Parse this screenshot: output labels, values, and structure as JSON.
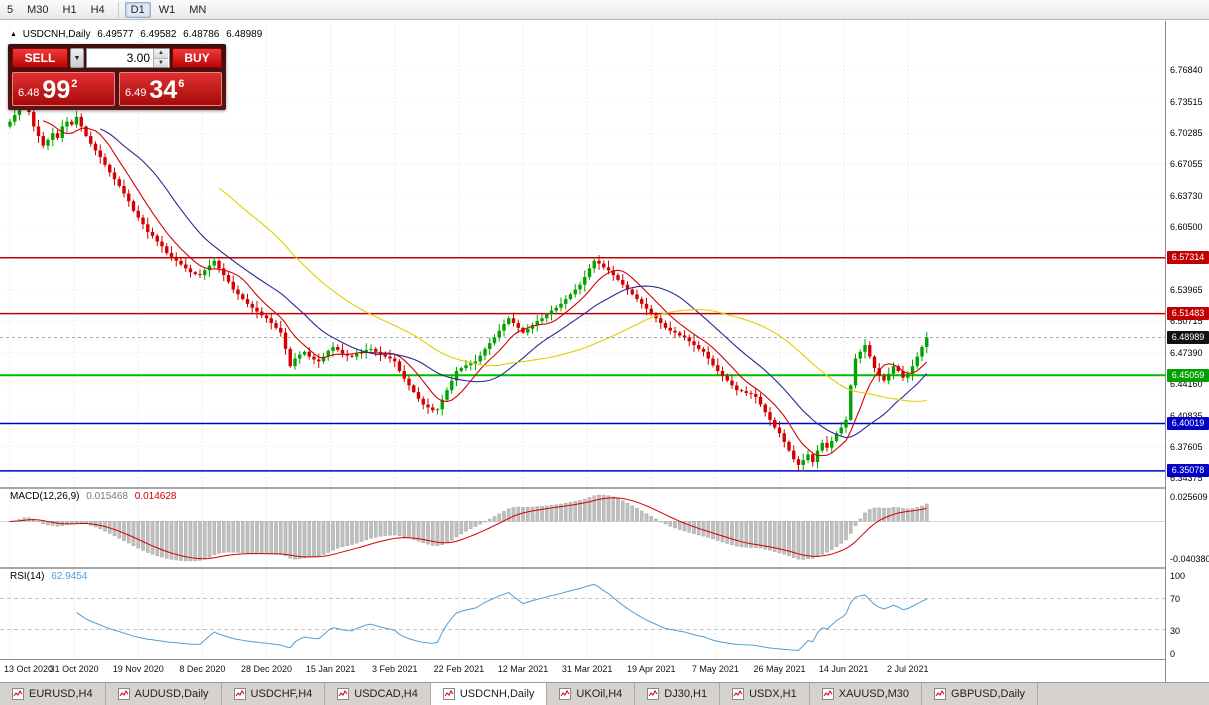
{
  "toolbar": {
    "timeframes": [
      "5",
      "M30",
      "H1",
      "H4",
      "D1",
      "W1",
      "MN"
    ],
    "active_timeframe": "D1"
  },
  "chart_header": {
    "collapse_icon": "▲",
    "symbol": "USDCNH,Daily",
    "open": "6.49577",
    "high": "6.49582",
    "low": "6.48786",
    "close": "6.48989"
  },
  "trade_panel": {
    "sell_label": "SELL",
    "buy_label": "BUY",
    "volume": "3.00",
    "dropdown_icon": "▼",
    "spinner_up_icon": "▲",
    "spinner_down_icon": "▼",
    "bid": {
      "prefix": "6.48",
      "big": "99",
      "sup": "2"
    },
    "ask": {
      "prefix": "6.49",
      "big": "34",
      "sup": "6"
    }
  },
  "price_axis": {
    "labels": [
      "6.76840",
      "6.73515",
      "6.70285",
      "6.67055",
      "6.63730",
      "6.60500",
      "6.53965",
      "6.50715",
      "6.47390",
      "6.44160",
      "6.40835",
      "6.37605",
      "6.34375"
    ],
    "badges": [
      {
        "text": "6.57314",
        "value": 6.57314,
        "color": "#C00000"
      },
      {
        "text": "6.51483",
        "value": 6.51483,
        "color": "#C00000"
      },
      {
        "text": "6.48989",
        "value": 6.48989,
        "color": "#111111"
      },
      {
        "text": "6.45059",
        "value": 6.45059,
        "color": "#00A000"
      },
      {
        "text": "6.40019",
        "value": 6.40019,
        "color": "#0000C8"
      },
      {
        "text": "6.35078",
        "value": 6.35078,
        "color": "#0000C8"
      }
    ]
  },
  "indicators": {
    "macd": {
      "label": "MACD(12,26,9)",
      "value_main": "0.015468",
      "value_signal": "0.014628",
      "axis_top": "0.025609",
      "axis_bottom": "-0.040380"
    },
    "rsi": {
      "label": "RSI(14)",
      "value": "62.9454",
      "axis_labels": [
        "100",
        "70",
        "30",
        "0"
      ]
    }
  },
  "date_axis": [
    "13 Oct 2020",
    "31 Oct 2020",
    "19 Nov 2020",
    "8 Dec 2020",
    "28 Dec 2020",
    "15 Jan 2021",
    "3 Feb 2021",
    "22 Feb 2021",
    "12 Mar 2021",
    "31 Mar 2021",
    "19 Apr 2021",
    "7 May 2021",
    "26 May 2021",
    "14 Jun 2021",
    "2 Jul 2021"
  ],
  "tabs": [
    {
      "label": "EURUSD,H4"
    },
    {
      "label": "AUDUSD,Daily"
    },
    {
      "label": "USDCHF,H4"
    },
    {
      "label": "USDCAD,H4"
    },
    {
      "label": "USDCNH,Daily",
      "active": true
    },
    {
      "label": "UKOil,H4"
    },
    {
      "label": "DJ30,H1"
    },
    {
      "label": "USDX,H1"
    },
    {
      "label": "XAUUSD,M30"
    },
    {
      "label": "GBPUSD,Daily"
    }
  ],
  "chart_data": {
    "type": "candlestick",
    "symbol": "USDCNH",
    "timeframe": "Daily",
    "title": "USDCNH,Daily",
    "ylim": [
      6.334,
      6.82
    ],
    "first_open": 6.71,
    "closes": [
      6.715,
      6.722,
      6.73,
      6.737,
      6.725,
      6.71,
      6.7,
      6.69,
      6.696,
      6.703,
      6.698,
      6.71,
      6.715,
      6.712,
      6.72,
      6.71,
      6.7,
      6.692,
      6.685,
      6.678,
      6.67,
      6.662,
      6.655,
      6.648,
      6.64,
      6.632,
      6.622,
      6.615,
      6.608,
      6.6,
      6.596,
      6.59,
      6.585,
      6.578,
      6.574,
      6.57,
      6.566,
      6.562,
      6.558,
      6.556,
      6.555,
      6.56,
      6.565,
      6.57,
      6.562,
      6.555,
      6.548,
      6.54,
      6.535,
      6.53,
      6.525,
      6.521,
      6.517,
      6.513,
      6.51,
      6.505,
      6.5,
      6.495,
      6.478,
      6.46,
      6.468,
      6.472,
      6.475,
      6.47,
      6.467,
      6.465,
      6.47,
      6.476,
      6.48,
      6.477,
      6.473,
      6.471,
      6.47,
      6.473,
      6.475,
      6.477,
      6.478,
      6.475,
      6.472,
      6.47,
      6.468,
      6.465,
      6.455,
      6.447,
      6.44,
      6.433,
      6.426,
      6.42,
      6.417,
      6.414,
      6.415,
      6.425,
      6.435,
      6.445,
      6.455,
      6.458,
      6.461,
      6.463,
      6.465,
      6.471,
      6.478,
      6.484,
      6.49,
      6.497,
      6.504,
      6.51,
      6.505,
      6.5,
      6.495,
      6.499,
      6.503,
      6.507,
      6.51,
      6.514,
      6.518,
      6.521,
      6.525,
      6.53,
      6.535,
      6.54,
      6.545,
      6.553,
      6.562,
      6.57,
      6.567,
      6.563,
      6.56,
      6.555,
      6.55,
      6.545,
      6.54,
      6.535,
      6.53,
      6.525,
      6.52,
      6.515,
      6.51,
      6.505,
      6.5,
      6.497,
      6.495,
      6.492,
      6.49,
      6.486,
      6.482,
      6.478,
      6.475,
      6.468,
      6.461,
      6.455,
      6.45,
      6.445,
      6.44,
      6.435,
      6.434,
      6.432,
      6.431,
      6.428,
      6.42,
      6.412,
      6.404,
      6.396,
      6.39,
      6.381,
      6.372,
      6.363,
      6.357,
      6.362,
      6.368,
      6.36,
      6.372,
      6.38,
      6.375,
      6.382,
      6.39,
      6.396,
      6.404,
      6.44,
      6.468,
      6.475,
      6.482,
      6.47,
      6.458,
      6.45,
      6.445,
      6.452,
      6.46,
      6.455,
      6.448,
      6.452,
      6.46,
      6.47,
      6.48,
      6.49
    ],
    "label_step": 13.5,
    "candle_colors": {
      "up": "#00A300",
      "down": "#D60000"
    },
    "moving_averages": [
      {
        "period": 8,
        "color": "#D40000"
      },
      {
        "period": 20,
        "color": "#2A2A8F"
      },
      {
        "period": 45,
        "color": "#E3CE00"
      }
    ],
    "hlines": [
      {
        "value": 6.57314,
        "color": "#C00000",
        "width": 1.5
      },
      {
        "value": 6.51483,
        "color": "#C00000",
        "width": 1.5
      },
      {
        "value": 6.45059,
        "color": "#00BB00",
        "width": 2
      },
      {
        "value": 6.40019,
        "color": "#0000C8",
        "width": 1.5
      },
      {
        "value": 6.35078,
        "color": "#0000C8",
        "width": 1.5
      }
    ],
    "current_price": 6.48989,
    "macd": {
      "fast": 12,
      "slow": 26,
      "signal": 9,
      "histogram_color": "#BFBFBF",
      "signal_color": "#D00000"
    },
    "rsi": {
      "period": 14,
      "levels": [
        70,
        30
      ],
      "color": "#4F9FD8"
    }
  }
}
